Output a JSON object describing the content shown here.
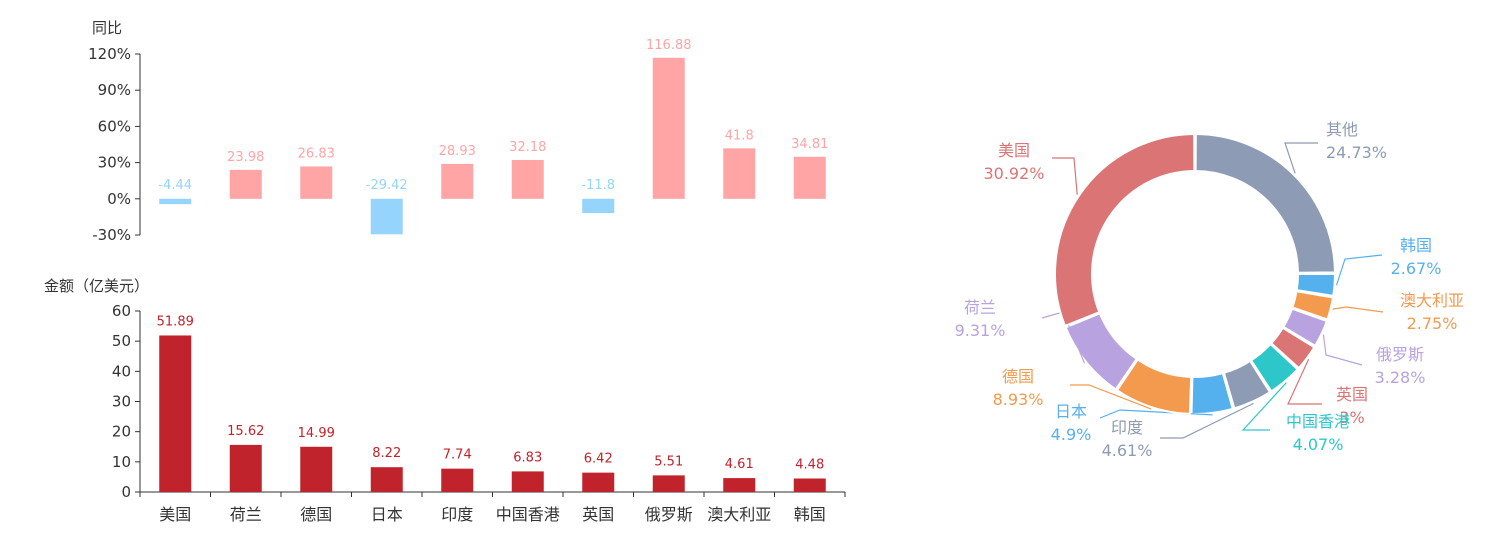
{
  "chart_data": [
    {
      "type": "bar",
      "title": "",
      "ylabel": "同比",
      "ylim": [
        -30,
        120
      ],
      "yticks": [
        "-30%",
        "0%",
        "30%",
        "60%",
        "90%",
        "120%"
      ],
      "categories": [
        "美国",
        "荷兰",
        "德国",
        "日本",
        "印度",
        "中国香港",
        "英国",
        "俄罗斯",
        "澳大利亚",
        "韩国"
      ],
      "values": [
        -4.44,
        23.98,
        26.83,
        -29.42,
        28.93,
        32.18,
        -11.8,
        116.88,
        41.8,
        34.81
      ],
      "value_labels": [
        "-4.44",
        "23.98",
        "26.83",
        "-29.42",
        "28.93",
        "32.18",
        "-11.8",
        "116.88",
        "41.8",
        "34.81"
      ],
      "colors": {
        "positive": "#ffa5a6",
        "negative": "#95d4fd"
      }
    },
    {
      "type": "bar",
      "title": "",
      "ylabel": "金额（亿美元）",
      "ylim": [
        0,
        60
      ],
      "yticks": [
        "0",
        "10",
        "20",
        "30",
        "40",
        "50",
        "60"
      ],
      "categories": [
        "美国",
        "荷兰",
        "德国",
        "日本",
        "印度",
        "中国香港",
        "英国",
        "俄罗斯",
        "澳大利亚",
        "韩国"
      ],
      "values": [
        51.89,
        15.62,
        14.99,
        8.22,
        7.74,
        6.83,
        6.42,
        5.51,
        4.61,
        4.48
      ],
      "value_labels": [
        "51.89",
        "15.62",
        "14.99",
        "8.22",
        "7.74",
        "6.83",
        "6.42",
        "5.51",
        "4.61",
        "4.48"
      ],
      "colors": {
        "bar": "#c0232b"
      }
    },
    {
      "type": "pie",
      "subtype": "donut",
      "slices": [
        {
          "name": "其他",
          "value": 24.73,
          "label": "24.73%",
          "color": "#8e9bb4"
        },
        {
          "name": "韩国",
          "value": 2.67,
          "label": "2.67%",
          "color": "#55b1ee"
        },
        {
          "name": "澳大利亚",
          "value": 2.75,
          "label": "2.75%",
          "color": "#f39a4e"
        },
        {
          "name": "俄罗斯",
          "value": 3.28,
          "label": "3.28%",
          "color": "#b8a3e0"
        },
        {
          "name": "英国",
          "value": 3.13,
          "label": "3%",
          "color": "#db7474"
        },
        {
          "name": "中国香港",
          "value": 4.07,
          "label": "4.07%",
          "color": "#2ec7c9"
        },
        {
          "name": "印度",
          "value": 4.61,
          "label": "4.61%",
          "color": "#8e9bb4"
        },
        {
          "name": "日本",
          "value": 4.9,
          "label": "4.9%",
          "color": "#55b1ee"
        },
        {
          "name": "德国",
          "value": 8.93,
          "label": "8.93%",
          "color": "#f39a4e"
        },
        {
          "name": "荷兰",
          "value": 9.31,
          "label": "9.31%",
          "color": "#b8a3e0"
        },
        {
          "name": "美国",
          "value": 30.92,
          "label": "30.92%",
          "color": "#db7474"
        }
      ]
    }
  ]
}
